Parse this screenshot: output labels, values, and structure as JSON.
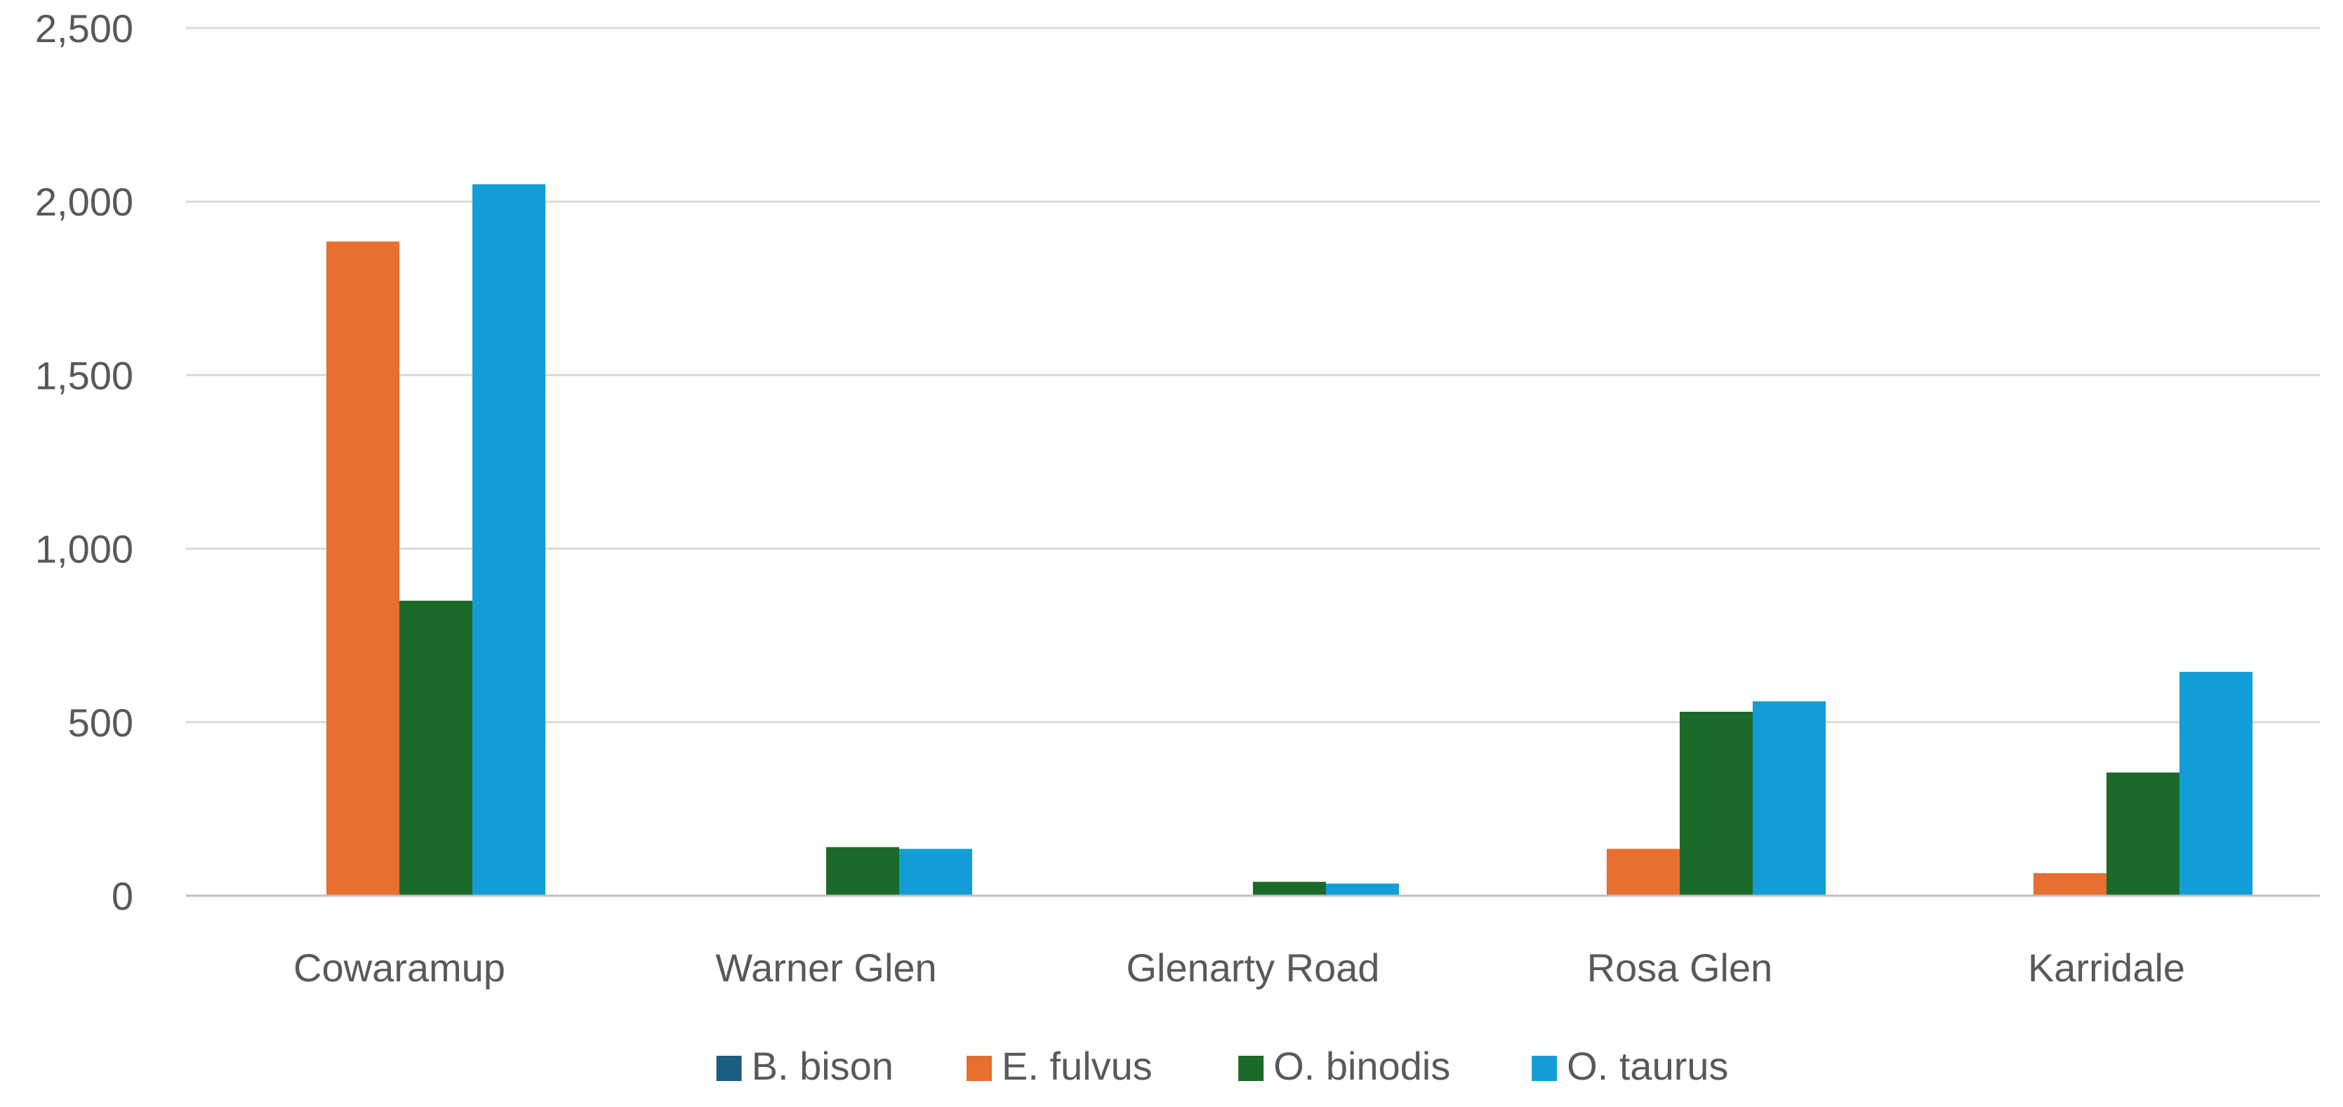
{
  "chart_data": {
    "type": "bar",
    "title": "",
    "xlabel": "",
    "ylabel": "",
    "ylim": [
      0,
      2500
    ],
    "yticks": [
      0,
      500,
      1000,
      1500,
      2000,
      2500
    ],
    "ytick_labels": [
      "0",
      "500",
      "1,000",
      "1,500",
      "2,000",
      "2,500"
    ],
    "grid": true,
    "legend_position": "bottom",
    "categories": [
      "Cowaramup",
      "Warner Glen",
      "Glenarty Road",
      "Rosa Glen",
      "Karridale"
    ],
    "series": [
      {
        "name": "B. bison",
        "color": "#1b5e82",
        "values": [
          0,
          0,
          0,
          0,
          0
        ]
      },
      {
        "name": "E. fulvus",
        "color": "#e76f30",
        "values": [
          1885,
          0,
          0,
          135,
          65
        ]
      },
      {
        "name": "O. binodis",
        "color": "#1b6a2a",
        "values": [
          850,
          140,
          40,
          530,
          355
        ]
      },
      {
        "name": "O. taurus",
        "color": "#139dd6",
        "values": [
          2050,
          135,
          35,
          560,
          645
        ]
      }
    ]
  }
}
